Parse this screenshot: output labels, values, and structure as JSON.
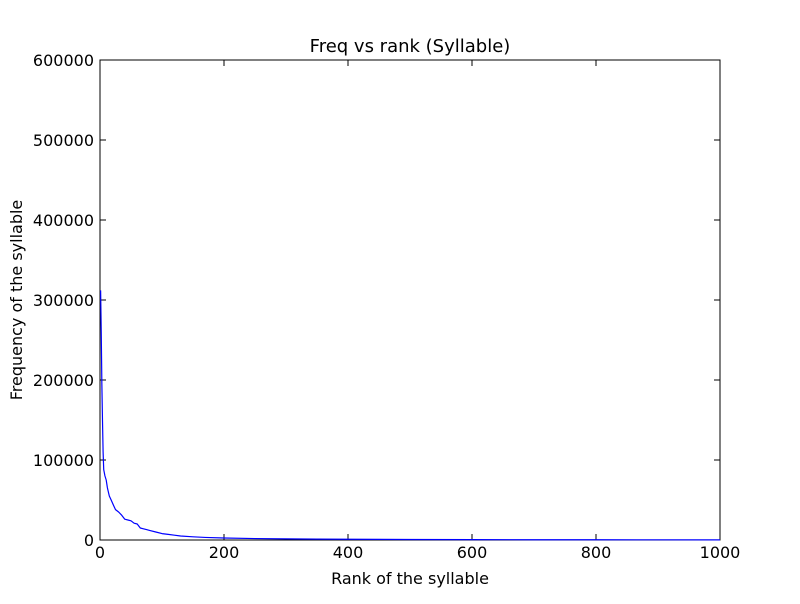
{
  "chart_data": {
    "type": "line",
    "title": "Freq vs rank (Syllable)",
    "xlabel": "Rank of the syllable",
    "ylabel": "Frequency of the syllable",
    "xlim": [
      0,
      1000
    ],
    "ylim": [
      0,
      600000
    ],
    "xticks": [
      0,
      200,
      400,
      600,
      800,
      1000
    ],
    "yticks": [
      0,
      100000,
      200000,
      300000,
      400000,
      500000,
      600000
    ],
    "grid": false,
    "line_color": "#0000ff",
    "series": [
      {
        "x": [
          1,
          2,
          3,
          4,
          5,
          6,
          8,
          10,
          12,
          15,
          18,
          22,
          25,
          30,
          35,
          40,
          45,
          50,
          55,
          60,
          65,
          70,
          75,
          80,
          90,
          100,
          110,
          120,
          130,
          150,
          170,
          200,
          250,
          300,
          350,
          400,
          500,
          600,
          700,
          800,
          900,
          1000
        ],
        "y": [
          312000,
          260000,
          195000,
          150000,
          110000,
          88000,
          80000,
          75000,
          65000,
          55000,
          50000,
          43000,
          38000,
          35000,
          31000,
          26000,
          25000,
          24000,
          21000,
          20000,
          15000,
          14000,
          13000,
          12000,
          10000,
          8000,
          7000,
          6000,
          5000,
          4000,
          3200,
          2500,
          1800,
          1400,
          1100,
          900,
          600,
          450,
          350,
          280,
          230,
          200
        ]
      }
    ]
  }
}
